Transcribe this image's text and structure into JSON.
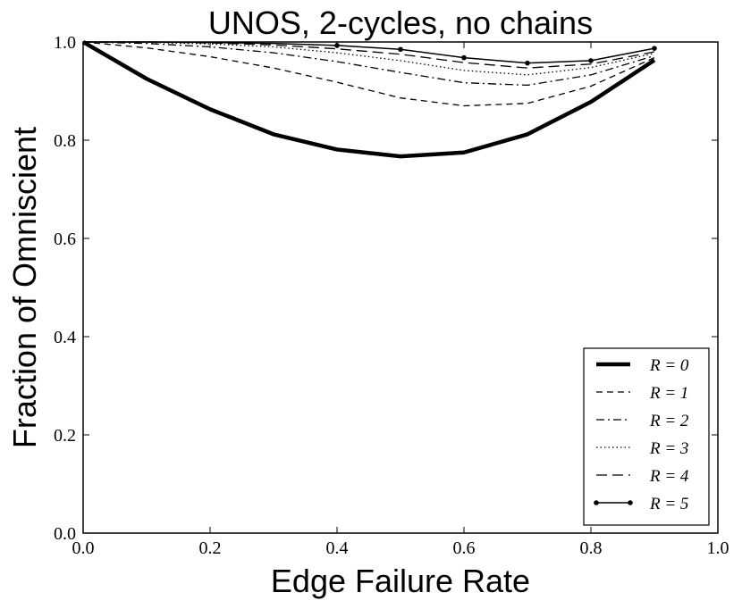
{
  "chart_data": {
    "type": "line",
    "title": "UNOS, 2-cycles, no chains",
    "xlabel": "Edge Failure Rate",
    "ylabel": "Fraction of Omniscient",
    "xlim": [
      0.0,
      1.0
    ],
    "ylim": [
      0.0,
      1.0
    ],
    "xticks": [
      0.0,
      0.2,
      0.4,
      0.6,
      0.8,
      1.0
    ],
    "yticks": [
      0.0,
      0.2,
      0.4,
      0.6,
      0.8,
      1.0
    ],
    "xtick_labels": [
      "0.0",
      "0.2",
      "0.4",
      "0.6",
      "0.8",
      "1.0"
    ],
    "ytick_labels": [
      "0.0",
      "0.2",
      "0.4",
      "0.6",
      "0.8",
      "1.0"
    ],
    "grid": false,
    "legend_position": "lower-right",
    "x": [
      0.0,
      0.1,
      0.2,
      0.3,
      0.4,
      0.5,
      0.6,
      0.7,
      0.8,
      0.9
    ],
    "series": [
      {
        "name": "R = 0",
        "style": "thick-solid",
        "values": [
          1.0,
          0.925,
          0.863,
          0.812,
          0.781,
          0.767,
          0.775,
          0.812,
          0.878,
          0.963
        ]
      },
      {
        "name": "R = 1",
        "style": "dashed",
        "values": [
          1.0,
          0.988,
          0.97,
          0.947,
          0.918,
          0.886,
          0.87,
          0.875,
          0.91,
          0.968
        ]
      },
      {
        "name": "R = 2",
        "style": "dash-dot",
        "values": [
          1.0,
          0.997,
          0.99,
          0.978,
          0.96,
          0.938,
          0.917,
          0.912,
          0.933,
          0.972
        ]
      },
      {
        "name": "R = 3",
        "style": "dotted",
        "values": [
          1.0,
          0.999,
          0.996,
          0.99,
          0.978,
          0.962,
          0.942,
          0.933,
          0.948,
          0.977
        ]
      },
      {
        "name": "R = 4",
        "style": "long-dash",
        "values": [
          1.0,
          1.0,
          0.998,
          0.994,
          0.986,
          0.975,
          0.958,
          0.947,
          0.955,
          0.98
        ]
      },
      {
        "name": "R = 5",
        "style": "solid-dots",
        "values": [
          1.0,
          1.0,
          0.999,
          0.997,
          0.993,
          0.985,
          0.968,
          0.957,
          0.962,
          0.987
        ]
      }
    ]
  }
}
